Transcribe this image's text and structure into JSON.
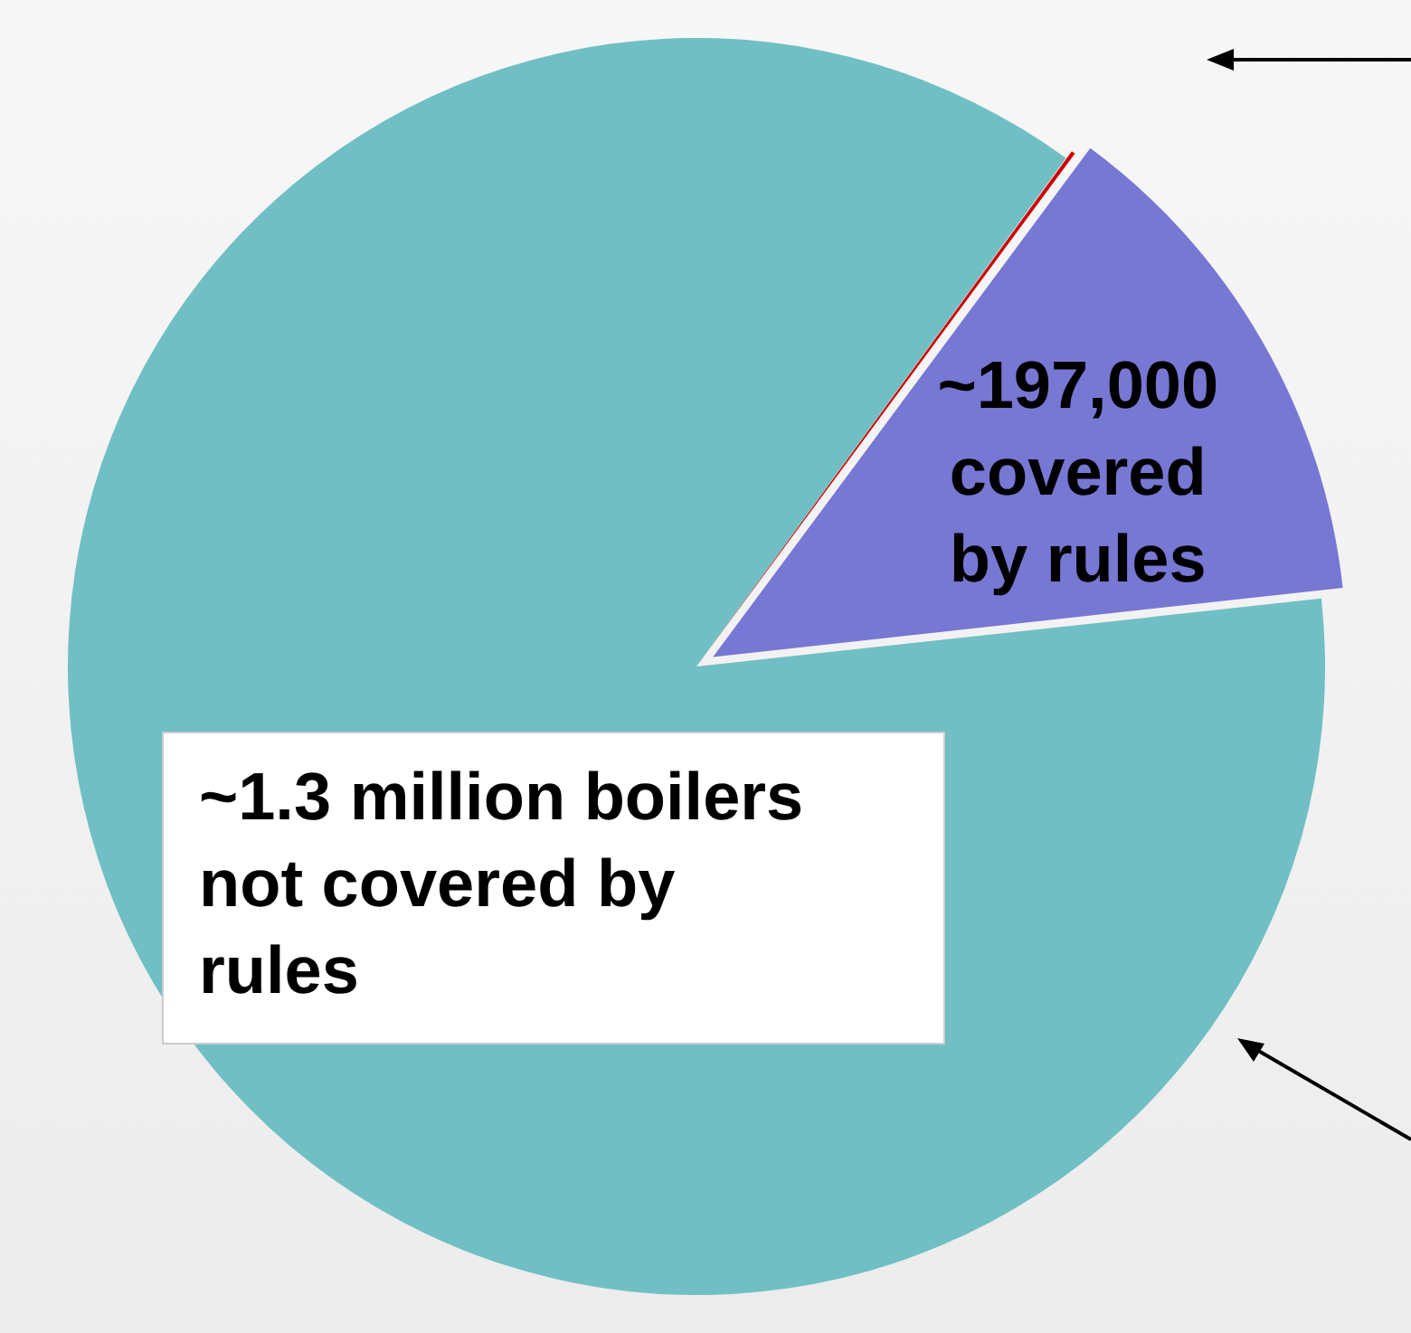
{
  "chart_data": {
    "type": "pie",
    "categories": [
      null,
      "~197,000 covered by rules",
      "~1.3 million boilers not covered by rules"
    ],
    "values": [
      2000,
      197000,
      1300000
    ],
    "colors": [
      "#cc0000",
      "#7777d4",
      "#70bfc5"
    ]
  }
}
